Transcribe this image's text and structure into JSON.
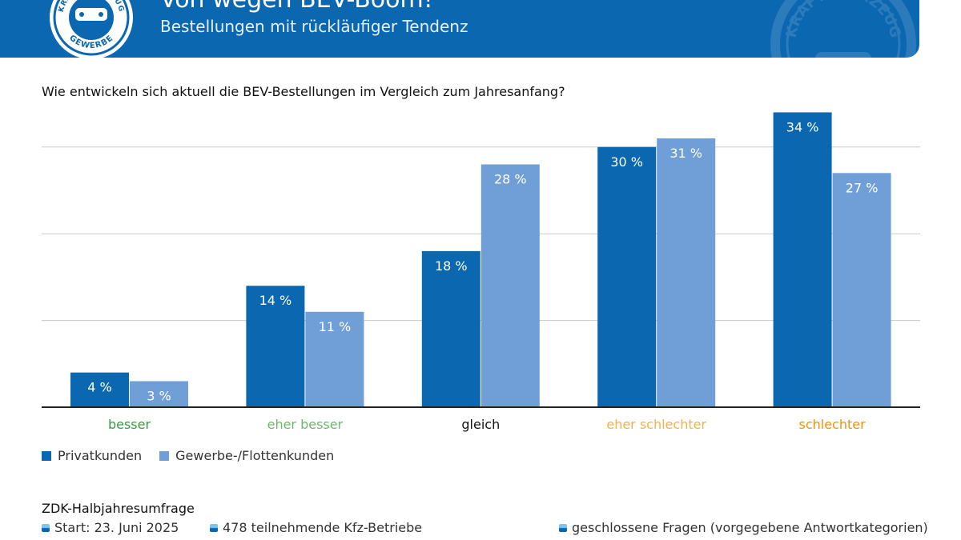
{
  "header": {
    "title": "Von wegen BEV-Boom!",
    "subtitle": "Bestellungen mit rückläufiger Tendenz",
    "logo_text": "GEWERBE",
    "logo_top_text": "KRAFTFAHRZEUG",
    "watermark_text": "KRAFTFAHRZEUG"
  },
  "question": "Wie entwickeln sich aktuell die BEV-Bestellungen im Vergleich zum Jahresanfang?",
  "colors": {
    "header_bg": "#0c67b1",
    "series_private": "#0c67b1",
    "series_fleet": "#6f9fd6",
    "cat_besser": "#3c9a3c",
    "cat_eher_besser": "#6cb86c",
    "cat_gleich": "#111111",
    "cat_eher_schlechter": "#f5b04a",
    "cat_schlechter": "#ef9208"
  },
  "chart_data": {
    "type": "bar",
    "title": "Wie entwickeln sich aktuell die BEV-Bestellungen im Vergleich zum Jahresanfang?",
    "categories": [
      "besser",
      "eher besser",
      "gleich",
      "eher schlechter",
      "schlechter"
    ],
    "category_colors": [
      "#3c9a3c",
      "#6cb86c",
      "#111111",
      "#f5b04a",
      "#ef9208"
    ],
    "series": [
      {
        "name": "Privatkunden",
        "values": [
          4,
          14,
          18,
          30,
          34
        ],
        "labels": [
          "4 %",
          "14 %",
          "18 %",
          "30 %",
          "34 %"
        ],
        "color": "#0c67b1"
      },
      {
        "name": "Gewerbe-/Flottenkunden",
        "values": [
          3,
          11,
          28,
          31,
          27
        ],
        "labels": [
          "3 %",
          "11 %",
          "28 %",
          "31 %",
          "27 %"
        ],
        "color": "#6f9fd6"
      }
    ],
    "ylim": [
      0,
      35
    ],
    "gridlines": [
      10,
      20,
      30
    ],
    "xlabel": "",
    "ylabel": "",
    "legend": "bottom-left"
  },
  "legend": {
    "items": [
      {
        "label": "Privatkunden",
        "color": "#0c67b1"
      },
      {
        "label": "Gewerbe-/Flottenkunden",
        "color": "#6f9fd6"
      }
    ]
  },
  "footer": {
    "title": "ZDK-Halbjahresumfrage",
    "items": [
      "Start: 23. Juni 2025",
      "478 teilnehmende Kfz-Betriebe",
      "geschlossene Fragen (vorgegebene Antwortkategorien)"
    ]
  }
}
